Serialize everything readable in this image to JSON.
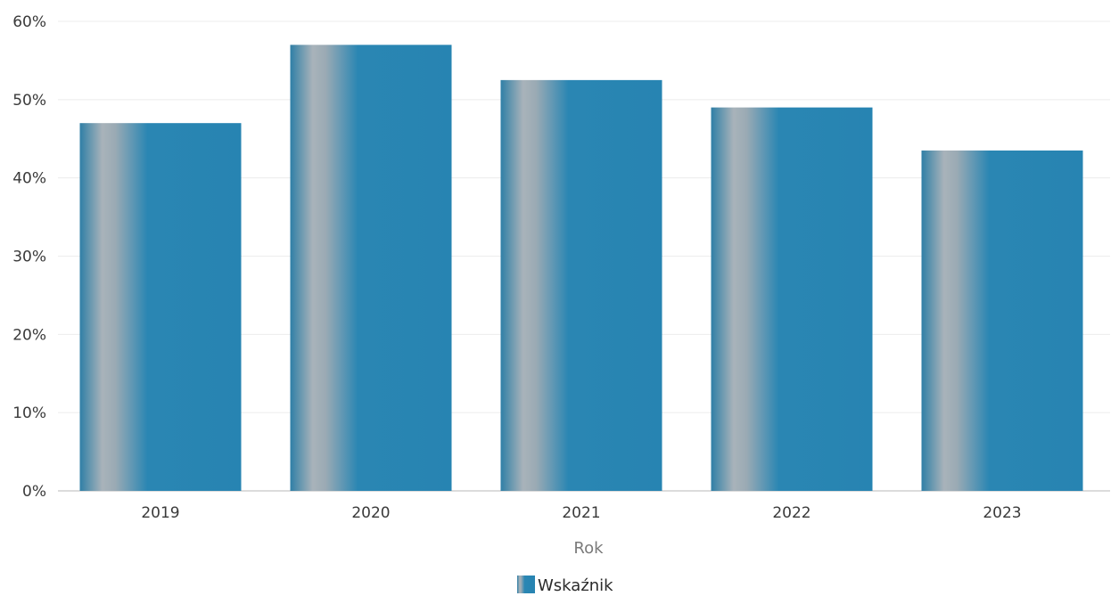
{
  "chart_data": {
    "type": "bar",
    "categories": [
      "2019",
      "2020",
      "2021",
      "2022",
      "2023"
    ],
    "series": [
      {
        "name": "Wskaźnik",
        "values": [
          47,
          57,
          52.5,
          49,
          43.5
        ]
      }
    ],
    "xlabel": "Rok",
    "ylabel": "",
    "ylim": [
      0,
      60
    ],
    "yticks": [
      "0%",
      "10%",
      "20%",
      "30%",
      "40%",
      "50%",
      "60%"
    ],
    "grid": true,
    "legend": "bottom-center",
    "colors": {
      "bar_main": "#2a86b3",
      "bar_highlight": "#a7b3bc"
    }
  }
}
